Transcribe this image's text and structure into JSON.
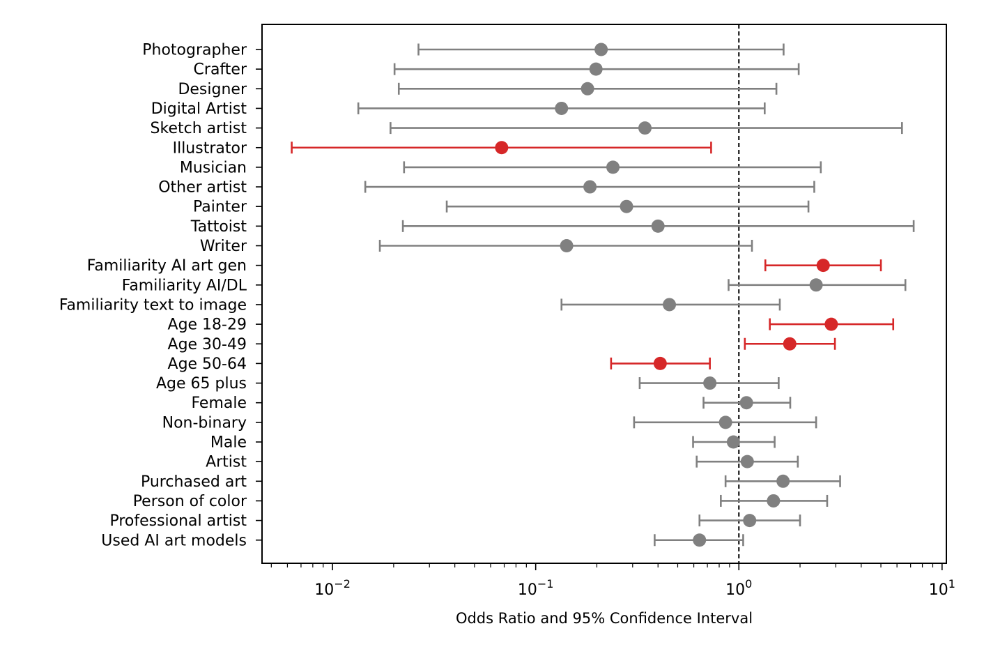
{
  "chart_data": {
    "type": "forest",
    "xscale": "log",
    "xlim": [
      0.0045,
      10.5
    ],
    "xlabel": "Odds Ratio and 95% Confidence Interval",
    "reference_line": 1.0,
    "x_ticks": [
      {
        "base": "10",
        "exp": "−2",
        "value": 0.01
      },
      {
        "base": "10",
        "exp": "−1",
        "value": 0.1
      },
      {
        "base": "10",
        "exp": "0",
        "value": 1
      },
      {
        "base": "10",
        "exp": "1",
        "value": 10
      }
    ],
    "colors": {
      "significant": "#d62728",
      "not_significant": "#808080"
    },
    "rows": [
      {
        "label": "Photographer",
        "or": 0.21,
        "lo": 0.0265,
        "hi": 1.66,
        "significant": false
      },
      {
        "label": "Crafter",
        "or": 0.198,
        "lo": 0.0202,
        "hi": 1.97,
        "significant": false
      },
      {
        "label": "Designer",
        "or": 0.18,
        "lo": 0.0212,
        "hi": 1.53,
        "significant": false
      },
      {
        "label": "Digital Artist",
        "or": 0.134,
        "lo": 0.0134,
        "hi": 1.34,
        "significant": false
      },
      {
        "label": "Sketch artist",
        "or": 0.345,
        "lo": 0.0193,
        "hi": 6.35,
        "significant": false
      },
      {
        "label": "Illustrator",
        "or": 0.068,
        "lo": 0.0063,
        "hi": 0.73,
        "significant": true
      },
      {
        "label": "Musician",
        "or": 0.24,
        "lo": 0.0225,
        "hi": 2.53,
        "significant": false
      },
      {
        "label": "Other artist",
        "or": 0.185,
        "lo": 0.0145,
        "hi": 2.35,
        "significant": false
      },
      {
        "label": "Painter",
        "or": 0.28,
        "lo": 0.0365,
        "hi": 2.2,
        "significant": false
      },
      {
        "label": "Tattoist",
        "or": 0.4,
        "lo": 0.0222,
        "hi": 7.25,
        "significant": false
      },
      {
        "label": "Writer",
        "or": 0.142,
        "lo": 0.0171,
        "hi": 1.16,
        "significant": false
      },
      {
        "label": "Familiarity AI art gen",
        "or": 2.6,
        "lo": 1.35,
        "hi": 5.0,
        "significant": true
      },
      {
        "label": "Familiarity AI/DL",
        "or": 2.4,
        "lo": 0.89,
        "hi": 6.6,
        "significant": false
      },
      {
        "label": "Familiarity text to image",
        "or": 0.455,
        "lo": 0.134,
        "hi": 1.59,
        "significant": false
      },
      {
        "label": "Age 18-29",
        "or": 2.85,
        "lo": 1.42,
        "hi": 5.75,
        "significant": true
      },
      {
        "label": "Age 30-49",
        "or": 1.78,
        "lo": 1.07,
        "hi": 2.97,
        "significant": true
      },
      {
        "label": "Age 50-64",
        "or": 0.41,
        "lo": 0.235,
        "hi": 0.72,
        "significant": true
      },
      {
        "label": "Age 65 plus",
        "or": 0.72,
        "lo": 0.325,
        "hi": 1.57,
        "significant": false
      },
      {
        "label": "Female",
        "or": 1.09,
        "lo": 0.67,
        "hi": 1.79,
        "significant": false
      },
      {
        "label": "Non-binary",
        "or": 0.86,
        "lo": 0.305,
        "hi": 2.4,
        "significant": false
      },
      {
        "label": "Male",
        "or": 0.94,
        "lo": 0.595,
        "hi": 1.5,
        "significant": false
      },
      {
        "label": "Artist",
        "or": 1.1,
        "lo": 0.62,
        "hi": 1.95,
        "significant": false
      },
      {
        "label": "Purchased art",
        "or": 1.65,
        "lo": 0.86,
        "hi": 3.15,
        "significant": false
      },
      {
        "label": "Person of color",
        "or": 1.48,
        "lo": 0.815,
        "hi": 2.72,
        "significant": false
      },
      {
        "label": "Professional artist",
        "or": 1.13,
        "lo": 0.64,
        "hi": 2.0,
        "significant": false
      },
      {
        "label": "Used AI art models",
        "or": 0.64,
        "lo": 0.385,
        "hi": 1.05,
        "significant": false
      }
    ]
  }
}
